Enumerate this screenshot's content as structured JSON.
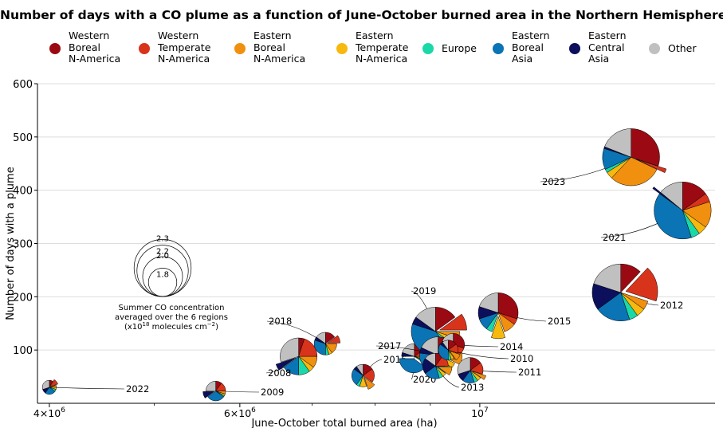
{
  "chart_data": {
    "type": "scatter",
    "title": "Number of days with a CO plume as a function of June-October burned area in the Northern Hemisphere",
    "xlabel": "June-October total burned area (ha)",
    "ylabel": "Number of days with a plume",
    "x_scale": "log",
    "xlim": [
      3900000,
      16500000
    ],
    "ylim": [
      0,
      600
    ],
    "yticks": [
      "100",
      "200",
      "300",
      "400",
      "500",
      "600"
    ],
    "xticks": [
      {
        "value": 4000000,
        "base": "4×10",
        "exp": "6"
      },
      {
        "value": 6000000,
        "base": "6×10",
        "exp": "6"
      },
      {
        "value": 10000000,
        "base": "10",
        "exp": "7"
      }
    ],
    "grid": "horizontal",
    "legend_position": "top",
    "regions": [
      {
        "name": "Western\nBoreal\nN-America",
        "color": "#9b0a12"
      },
      {
        "name": "Western\nTemperate\nN-America",
        "color": "#d7341b"
      },
      {
        "name": "Eastern\nBoreal\nN-America",
        "color": "#f18f0f"
      },
      {
        "name": "Eastern\nTemperate\nN-America",
        "color": "#f7b90d"
      },
      {
        "name": "Europe",
        "color": "#1bd8a8"
      },
      {
        "name": "Eastern\nBoreal\nAsia",
        "color": "#0a74b5"
      },
      {
        "name": "Eastern\nCentral\nAsia",
        "color": "#0b0f5c"
      },
      {
        "name": "Other",
        "color": "#c0c0c0"
      }
    ],
    "size_legend": {
      "values": [
        "2.3",
        "2.2",
        "2.0",
        "1.8"
      ],
      "caption": "Summer CO concentration\naveraged over the 6 regions\n(x10",
      "caption_exp": "18",
      "caption_tail": " molecules cm",
      "caption_exp2": "−2",
      "caption_close": ")"
    },
    "points": [
      {
        "year": "2022",
        "x": 4000000,
        "y": 30,
        "co": 1.55,
        "shares": [
          0.08,
          0.12,
          0.05,
          0.05,
          0.05,
          0.25,
          0.1,
          0.3
        ],
        "explode": 1
      },
      {
        "year": "2009",
        "x": 5700000,
        "y": 23,
        "co": 1.65,
        "shares": [
          0.1,
          0.15,
          0.05,
          0.03,
          0.02,
          0.3,
          0.1,
          0.25
        ],
        "explode": 6
      },
      {
        "year": "2008",
        "x": 6800000,
        "y": 88,
        "co": 1.95,
        "shares": [
          0.05,
          0.2,
          0.1,
          0.05,
          0.1,
          0.15,
          0.05,
          0.3
        ],
        "explode": 6
      },
      {
        "year": "2018",
        "x": 7200000,
        "y": 112,
        "co": 1.7,
        "shares": [
          0.15,
          0.1,
          0.15,
          0.05,
          0.05,
          0.3,
          0.05,
          0.15
        ],
        "explode": 1
      },
      {
        "year": "2016",
        "x": 7800000,
        "y": 52,
        "co": 1.7,
        "shares": [
          0.15,
          0.2,
          0.1,
          0.1,
          0.05,
          0.25,
          0.05,
          0.1
        ],
        "explode": 2
      },
      {
        "year": "2020",
        "x": 8700000,
        "y": 88,
        "co": 1.75,
        "shares": [
          0.15,
          0.1,
          0.05,
          0.02,
          0.03,
          0.4,
          0.05,
          0.2
        ],
        "explode": 5
      },
      {
        "year": "2019",
        "x": 9100000,
        "y": 135,
        "co": 2.15,
        "shares": [
          0.15,
          0.1,
          0.05,
          0.05,
          0.05,
          0.4,
          0.05,
          0.15
        ],
        "explode": 1
      },
      {
        "year": "2017",
        "x": 9150000,
        "y": 90,
        "co": 1.95,
        "shares": [
          0.12,
          0.1,
          0.1,
          0.05,
          0.05,
          0.35,
          0.05,
          0.18
        ],
        "explode": 2
      },
      {
        "year": "2013",
        "x": 9100000,
        "y": 70,
        "co": 1.75,
        "shares": [
          0.1,
          0.15,
          0.1,
          0.05,
          0.05,
          0.2,
          0.2,
          0.15
        ],
        "explode": 2
      },
      {
        "year": "2014",
        "x": 9450000,
        "y": 110,
        "co": 1.7,
        "shares": [
          0.3,
          0.15,
          0.05,
          0.05,
          0.05,
          0.15,
          0.05,
          0.2
        ],
        "explode": 2
      },
      {
        "year": "2010",
        "x": 9350000,
        "y": 100,
        "co": 1.65,
        "shares": [
          0.15,
          0.15,
          0.1,
          0.05,
          0.05,
          0.35,
          0.05,
          0.1
        ],
        "explode": 2
      },
      {
        "year": "2011",
        "x": 9800000,
        "y": 62,
        "co": 1.75,
        "shares": [
          0.15,
          0.15,
          0.05,
          0.05,
          0.05,
          0.15,
          0.1,
          0.3
        ],
        "explode": 2
      },
      {
        "year": "2015",
        "x": 10400000,
        "y": 170,
        "co": 2.0,
        "shares": [
          0.3,
          0.05,
          0.1,
          0.1,
          0.05,
          0.1,
          0.1,
          0.2
        ],
        "explode": 3
      },
      {
        "year": "2012",
        "x": 13500000,
        "y": 208,
        "co": 2.3,
        "shares": [
          0.12,
          0.18,
          0.05,
          0.05,
          0.05,
          0.2,
          0.15,
          0.2
        ],
        "explode": 1
      },
      {
        "year": "2023",
        "x": 13800000,
        "y": 462,
        "co": 2.3,
        "shares": [
          0.3,
          0.02,
          0.3,
          0.04,
          0.02,
          0.12,
          0.01,
          0.19
        ],
        "explode": 1
      },
      {
        "year": "2021",
        "x": 15400000,
        "y": 362,
        "co": 2.3,
        "shares": [
          0.15,
          0.05,
          0.15,
          0.05,
          0.05,
          0.4,
          0.01,
          0.14
        ],
        "explode": 6
      }
    ]
  }
}
